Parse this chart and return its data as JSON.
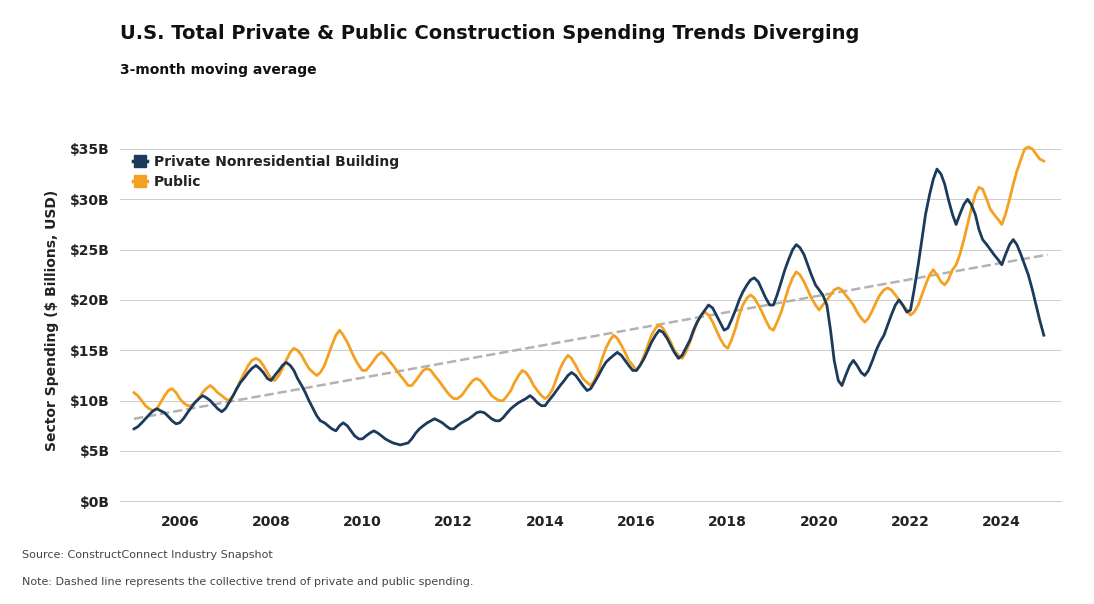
{
  "title": "U.S. Total Private & Public Construction Spending Trends Diverging",
  "subtitle": "3-month moving average",
  "ylabel": "Sector Spending ($ Billions, USD)",
  "source_text": "Source: ConstructConnect Industry Snapshot",
  "note_text": "Note: Dashed line represents the collective trend of private and public spending.",
  "ytick_labels": [
    "$0B",
    "$5B",
    "$10B",
    "$15B",
    "$20B",
    "$25B",
    "$30B",
    "$35B"
  ],
  "ytick_values": [
    0,
    5,
    10,
    15,
    20,
    25,
    30,
    35
  ],
  "xtick_years": [
    2006,
    2008,
    2010,
    2012,
    2014,
    2016,
    2018,
    2020,
    2022,
    2024
  ],
  "private_color": "#1b3a5c",
  "public_color": "#f5a020",
  "trend_color": "#aaaaaa",
  "background_color": "#ffffff",
  "private_label": "Private Nonresidential Building",
  "public_label": "Public",
  "xlim_start": 2004.7,
  "xlim_end": 2025.3,
  "ylim_min": 0,
  "ylim_max": 36,
  "trend_x": [
    2005.0,
    2025.0
  ],
  "trend_y": [
    8.2,
    24.5
  ],
  "private_data": [
    [
      2005.0,
      7.2
    ],
    [
      2005.08,
      7.4
    ],
    [
      2005.17,
      7.8
    ],
    [
      2005.25,
      8.2
    ],
    [
      2005.33,
      8.6
    ],
    [
      2005.42,
      9.0
    ],
    [
      2005.5,
      9.2
    ],
    [
      2005.58,
      9.0
    ],
    [
      2005.67,
      8.8
    ],
    [
      2005.75,
      8.4
    ],
    [
      2005.83,
      8.0
    ],
    [
      2005.92,
      7.7
    ],
    [
      2006.0,
      7.8
    ],
    [
      2006.08,
      8.2
    ],
    [
      2006.17,
      8.8
    ],
    [
      2006.25,
      9.3
    ],
    [
      2006.33,
      9.8
    ],
    [
      2006.42,
      10.2
    ],
    [
      2006.5,
      10.5
    ],
    [
      2006.58,
      10.3
    ],
    [
      2006.67,
      10.0
    ],
    [
      2006.75,
      9.6
    ],
    [
      2006.83,
      9.2
    ],
    [
      2006.92,
      8.9
    ],
    [
      2007.0,
      9.2
    ],
    [
      2007.08,
      9.8
    ],
    [
      2007.17,
      10.5
    ],
    [
      2007.25,
      11.2
    ],
    [
      2007.33,
      11.8
    ],
    [
      2007.42,
      12.3
    ],
    [
      2007.5,
      12.8
    ],
    [
      2007.58,
      13.2
    ],
    [
      2007.67,
      13.5
    ],
    [
      2007.75,
      13.2
    ],
    [
      2007.83,
      12.8
    ],
    [
      2007.92,
      12.2
    ],
    [
      2008.0,
      12.0
    ],
    [
      2008.08,
      12.5
    ],
    [
      2008.17,
      13.0
    ],
    [
      2008.25,
      13.5
    ],
    [
      2008.33,
      13.8
    ],
    [
      2008.42,
      13.5
    ],
    [
      2008.5,
      13.0
    ],
    [
      2008.58,
      12.2
    ],
    [
      2008.67,
      11.5
    ],
    [
      2008.75,
      10.8
    ],
    [
      2008.83,
      10.0
    ],
    [
      2008.92,
      9.2
    ],
    [
      2009.0,
      8.5
    ],
    [
      2009.08,
      8.0
    ],
    [
      2009.17,
      7.8
    ],
    [
      2009.25,
      7.5
    ],
    [
      2009.33,
      7.2
    ],
    [
      2009.42,
      7.0
    ],
    [
      2009.5,
      7.5
    ],
    [
      2009.58,
      7.8
    ],
    [
      2009.67,
      7.5
    ],
    [
      2009.75,
      7.0
    ],
    [
      2009.83,
      6.5
    ],
    [
      2009.92,
      6.2
    ],
    [
      2010.0,
      6.2
    ],
    [
      2010.08,
      6.5
    ],
    [
      2010.17,
      6.8
    ],
    [
      2010.25,
      7.0
    ],
    [
      2010.33,
      6.8
    ],
    [
      2010.42,
      6.5
    ],
    [
      2010.5,
      6.2
    ],
    [
      2010.58,
      6.0
    ],
    [
      2010.67,
      5.8
    ],
    [
      2010.75,
      5.7
    ],
    [
      2010.83,
      5.6
    ],
    [
      2010.92,
      5.7
    ],
    [
      2011.0,
      5.8
    ],
    [
      2011.08,
      6.2
    ],
    [
      2011.17,
      6.8
    ],
    [
      2011.25,
      7.2
    ],
    [
      2011.33,
      7.5
    ],
    [
      2011.42,
      7.8
    ],
    [
      2011.5,
      8.0
    ],
    [
      2011.58,
      8.2
    ],
    [
      2011.67,
      8.0
    ],
    [
      2011.75,
      7.8
    ],
    [
      2011.83,
      7.5
    ],
    [
      2011.92,
      7.2
    ],
    [
      2012.0,
      7.2
    ],
    [
      2012.08,
      7.5
    ],
    [
      2012.17,
      7.8
    ],
    [
      2012.25,
      8.0
    ],
    [
      2012.33,
      8.2
    ],
    [
      2012.42,
      8.5
    ],
    [
      2012.5,
      8.8
    ],
    [
      2012.58,
      8.9
    ],
    [
      2012.67,
      8.8
    ],
    [
      2012.75,
      8.5
    ],
    [
      2012.83,
      8.2
    ],
    [
      2012.92,
      8.0
    ],
    [
      2013.0,
      8.0
    ],
    [
      2013.08,
      8.3
    ],
    [
      2013.17,
      8.8
    ],
    [
      2013.25,
      9.2
    ],
    [
      2013.33,
      9.5
    ],
    [
      2013.42,
      9.8
    ],
    [
      2013.5,
      10.0
    ],
    [
      2013.58,
      10.2
    ],
    [
      2013.67,
      10.5
    ],
    [
      2013.75,
      10.2
    ],
    [
      2013.83,
      9.8
    ],
    [
      2013.92,
      9.5
    ],
    [
      2014.0,
      9.5
    ],
    [
      2014.08,
      10.0
    ],
    [
      2014.17,
      10.5
    ],
    [
      2014.25,
      11.0
    ],
    [
      2014.33,
      11.5
    ],
    [
      2014.42,
      12.0
    ],
    [
      2014.5,
      12.5
    ],
    [
      2014.58,
      12.8
    ],
    [
      2014.67,
      12.5
    ],
    [
      2014.75,
      12.0
    ],
    [
      2014.83,
      11.5
    ],
    [
      2014.92,
      11.0
    ],
    [
      2015.0,
      11.2
    ],
    [
      2015.08,
      11.8
    ],
    [
      2015.17,
      12.5
    ],
    [
      2015.25,
      13.2
    ],
    [
      2015.33,
      13.8
    ],
    [
      2015.42,
      14.2
    ],
    [
      2015.5,
      14.5
    ],
    [
      2015.58,
      14.8
    ],
    [
      2015.67,
      14.5
    ],
    [
      2015.75,
      14.0
    ],
    [
      2015.83,
      13.5
    ],
    [
      2015.92,
      13.0
    ],
    [
      2016.0,
      13.0
    ],
    [
      2016.08,
      13.5
    ],
    [
      2016.17,
      14.2
    ],
    [
      2016.25,
      15.0
    ],
    [
      2016.33,
      15.8
    ],
    [
      2016.42,
      16.5
    ],
    [
      2016.5,
      17.0
    ],
    [
      2016.58,
      16.8
    ],
    [
      2016.67,
      16.2
    ],
    [
      2016.75,
      15.5
    ],
    [
      2016.83,
      14.8
    ],
    [
      2016.92,
      14.2
    ],
    [
      2017.0,
      14.5
    ],
    [
      2017.08,
      15.2
    ],
    [
      2017.17,
      16.0
    ],
    [
      2017.25,
      17.0
    ],
    [
      2017.33,
      17.8
    ],
    [
      2017.42,
      18.5
    ],
    [
      2017.5,
      19.0
    ],
    [
      2017.58,
      19.5
    ],
    [
      2017.67,
      19.2
    ],
    [
      2017.75,
      18.5
    ],
    [
      2017.83,
      17.8
    ],
    [
      2017.92,
      17.0
    ],
    [
      2018.0,
      17.2
    ],
    [
      2018.08,
      18.0
    ],
    [
      2018.17,
      19.0
    ],
    [
      2018.25,
      20.0
    ],
    [
      2018.33,
      20.8
    ],
    [
      2018.42,
      21.5
    ],
    [
      2018.5,
      22.0
    ],
    [
      2018.58,
      22.2
    ],
    [
      2018.67,
      21.8
    ],
    [
      2018.75,
      21.0
    ],
    [
      2018.83,
      20.2
    ],
    [
      2018.92,
      19.5
    ],
    [
      2019.0,
      19.5
    ],
    [
      2019.08,
      20.5
    ],
    [
      2019.17,
      21.8
    ],
    [
      2019.25,
      23.0
    ],
    [
      2019.33,
      24.0
    ],
    [
      2019.42,
      25.0
    ],
    [
      2019.5,
      25.5
    ],
    [
      2019.58,
      25.2
    ],
    [
      2019.67,
      24.5
    ],
    [
      2019.75,
      23.5
    ],
    [
      2019.83,
      22.5
    ],
    [
      2019.92,
      21.5
    ],
    [
      2020.0,
      21.0
    ],
    [
      2020.08,
      20.5
    ],
    [
      2020.17,
      19.5
    ],
    [
      2020.25,
      17.0
    ],
    [
      2020.33,
      14.0
    ],
    [
      2020.42,
      12.0
    ],
    [
      2020.5,
      11.5
    ],
    [
      2020.58,
      12.5
    ],
    [
      2020.67,
      13.5
    ],
    [
      2020.75,
      14.0
    ],
    [
      2020.83,
      13.5
    ],
    [
      2020.92,
      12.8
    ],
    [
      2021.0,
      12.5
    ],
    [
      2021.08,
      13.0
    ],
    [
      2021.17,
      14.0
    ],
    [
      2021.25,
      15.0
    ],
    [
      2021.33,
      15.8
    ],
    [
      2021.42,
      16.5
    ],
    [
      2021.5,
      17.5
    ],
    [
      2021.58,
      18.5
    ],
    [
      2021.67,
      19.5
    ],
    [
      2021.75,
      20.0
    ],
    [
      2021.83,
      19.5
    ],
    [
      2021.92,
      18.8
    ],
    [
      2022.0,
      19.0
    ],
    [
      2022.08,
      21.0
    ],
    [
      2022.17,
      23.5
    ],
    [
      2022.25,
      26.0
    ],
    [
      2022.33,
      28.5
    ],
    [
      2022.42,
      30.5
    ],
    [
      2022.5,
      32.0
    ],
    [
      2022.58,
      33.0
    ],
    [
      2022.67,
      32.5
    ],
    [
      2022.75,
      31.5
    ],
    [
      2022.83,
      30.0
    ],
    [
      2022.92,
      28.5
    ],
    [
      2023.0,
      27.5
    ],
    [
      2023.08,
      28.5
    ],
    [
      2023.17,
      29.5
    ],
    [
      2023.25,
      30.0
    ],
    [
      2023.33,
      29.5
    ],
    [
      2023.42,
      28.5
    ],
    [
      2023.5,
      27.0
    ],
    [
      2023.58,
      26.0
    ],
    [
      2023.67,
      25.5
    ],
    [
      2023.75,
      25.0
    ],
    [
      2023.83,
      24.5
    ],
    [
      2023.92,
      24.0
    ],
    [
      2024.0,
      23.5
    ],
    [
      2024.08,
      24.5
    ],
    [
      2024.17,
      25.5
    ],
    [
      2024.25,
      26.0
    ],
    [
      2024.33,
      25.5
    ],
    [
      2024.42,
      24.5
    ],
    [
      2024.5,
      23.5
    ],
    [
      2024.58,
      22.5
    ],
    [
      2024.67,
      21.0
    ],
    [
      2024.75,
      19.5
    ],
    [
      2024.83,
      18.0
    ],
    [
      2024.92,
      16.5
    ]
  ],
  "public_data": [
    [
      2005.0,
      10.8
    ],
    [
      2005.08,
      10.5
    ],
    [
      2005.17,
      10.0
    ],
    [
      2005.25,
      9.5
    ],
    [
      2005.33,
      9.2
    ],
    [
      2005.42,
      9.0
    ],
    [
      2005.5,
      9.2
    ],
    [
      2005.58,
      9.8
    ],
    [
      2005.67,
      10.5
    ],
    [
      2005.75,
      11.0
    ],
    [
      2005.83,
      11.2
    ],
    [
      2005.92,
      10.8
    ],
    [
      2006.0,
      10.2
    ],
    [
      2006.08,
      9.8
    ],
    [
      2006.17,
      9.5
    ],
    [
      2006.25,
      9.5
    ],
    [
      2006.33,
      9.8
    ],
    [
      2006.42,
      10.2
    ],
    [
      2006.5,
      10.8
    ],
    [
      2006.58,
      11.2
    ],
    [
      2006.67,
      11.5
    ],
    [
      2006.75,
      11.2
    ],
    [
      2006.83,
      10.8
    ],
    [
      2006.92,
      10.5
    ],
    [
      2007.0,
      10.2
    ],
    [
      2007.08,
      10.0
    ],
    [
      2007.17,
      10.5
    ],
    [
      2007.25,
      11.2
    ],
    [
      2007.33,
      12.0
    ],
    [
      2007.42,
      12.8
    ],
    [
      2007.5,
      13.5
    ],
    [
      2007.58,
      14.0
    ],
    [
      2007.67,
      14.2
    ],
    [
      2007.75,
      14.0
    ],
    [
      2007.83,
      13.5
    ],
    [
      2007.92,
      12.8
    ],
    [
      2008.0,
      12.2
    ],
    [
      2008.08,
      12.0
    ],
    [
      2008.17,
      12.5
    ],
    [
      2008.25,
      13.2
    ],
    [
      2008.33,
      14.0
    ],
    [
      2008.42,
      14.8
    ],
    [
      2008.5,
      15.2
    ],
    [
      2008.58,
      15.0
    ],
    [
      2008.67,
      14.5
    ],
    [
      2008.75,
      13.8
    ],
    [
      2008.83,
      13.2
    ],
    [
      2008.92,
      12.8
    ],
    [
      2009.0,
      12.5
    ],
    [
      2009.08,
      12.8
    ],
    [
      2009.17,
      13.5
    ],
    [
      2009.25,
      14.5
    ],
    [
      2009.33,
      15.5
    ],
    [
      2009.42,
      16.5
    ],
    [
      2009.5,
      17.0
    ],
    [
      2009.58,
      16.5
    ],
    [
      2009.67,
      15.8
    ],
    [
      2009.75,
      15.0
    ],
    [
      2009.83,
      14.2
    ],
    [
      2009.92,
      13.5
    ],
    [
      2010.0,
      13.0
    ],
    [
      2010.08,
      13.0
    ],
    [
      2010.17,
      13.5
    ],
    [
      2010.25,
      14.0
    ],
    [
      2010.33,
      14.5
    ],
    [
      2010.42,
      14.8
    ],
    [
      2010.5,
      14.5
    ],
    [
      2010.58,
      14.0
    ],
    [
      2010.67,
      13.5
    ],
    [
      2010.75,
      13.0
    ],
    [
      2010.83,
      12.5
    ],
    [
      2010.92,
      12.0
    ],
    [
      2011.0,
      11.5
    ],
    [
      2011.08,
      11.5
    ],
    [
      2011.17,
      12.0
    ],
    [
      2011.25,
      12.5
    ],
    [
      2011.33,
      13.0
    ],
    [
      2011.42,
      13.2
    ],
    [
      2011.5,
      13.0
    ],
    [
      2011.58,
      12.5
    ],
    [
      2011.67,
      12.0
    ],
    [
      2011.75,
      11.5
    ],
    [
      2011.83,
      11.0
    ],
    [
      2011.92,
      10.5
    ],
    [
      2012.0,
      10.2
    ],
    [
      2012.08,
      10.2
    ],
    [
      2012.17,
      10.5
    ],
    [
      2012.25,
      11.0
    ],
    [
      2012.33,
      11.5
    ],
    [
      2012.42,
      12.0
    ],
    [
      2012.5,
      12.2
    ],
    [
      2012.58,
      12.0
    ],
    [
      2012.67,
      11.5
    ],
    [
      2012.75,
      11.0
    ],
    [
      2012.83,
      10.5
    ],
    [
      2012.92,
      10.2
    ],
    [
      2013.0,
      10.0
    ],
    [
      2013.08,
      10.0
    ],
    [
      2013.17,
      10.5
    ],
    [
      2013.25,
      11.0
    ],
    [
      2013.33,
      11.8
    ],
    [
      2013.42,
      12.5
    ],
    [
      2013.5,
      13.0
    ],
    [
      2013.58,
      12.8
    ],
    [
      2013.67,
      12.2
    ],
    [
      2013.75,
      11.5
    ],
    [
      2013.83,
      11.0
    ],
    [
      2013.92,
      10.5
    ],
    [
      2014.0,
      10.2
    ],
    [
      2014.08,
      10.5
    ],
    [
      2014.17,
      11.2
    ],
    [
      2014.25,
      12.2
    ],
    [
      2014.33,
      13.2
    ],
    [
      2014.42,
      14.0
    ],
    [
      2014.5,
      14.5
    ],
    [
      2014.58,
      14.2
    ],
    [
      2014.67,
      13.5
    ],
    [
      2014.75,
      12.8
    ],
    [
      2014.83,
      12.2
    ],
    [
      2014.92,
      11.8
    ],
    [
      2015.0,
      11.5
    ],
    [
      2015.08,
      12.0
    ],
    [
      2015.17,
      13.0
    ],
    [
      2015.25,
      14.2
    ],
    [
      2015.33,
      15.2
    ],
    [
      2015.42,
      16.0
    ],
    [
      2015.5,
      16.5
    ],
    [
      2015.58,
      16.2
    ],
    [
      2015.67,
      15.5
    ],
    [
      2015.75,
      14.8
    ],
    [
      2015.83,
      14.0
    ],
    [
      2015.92,
      13.5
    ],
    [
      2016.0,
      13.0
    ],
    [
      2016.08,
      13.5
    ],
    [
      2016.17,
      14.5
    ],
    [
      2016.25,
      15.5
    ],
    [
      2016.33,
      16.5
    ],
    [
      2016.42,
      17.2
    ],
    [
      2016.5,
      17.5
    ],
    [
      2016.58,
      17.2
    ],
    [
      2016.67,
      16.5
    ],
    [
      2016.75,
      15.8
    ],
    [
      2016.83,
      15.0
    ],
    [
      2016.92,
      14.5
    ],
    [
      2017.0,
      14.2
    ],
    [
      2017.08,
      14.8
    ],
    [
      2017.17,
      15.8
    ],
    [
      2017.25,
      16.8
    ],
    [
      2017.33,
      17.8
    ],
    [
      2017.42,
      18.5
    ],
    [
      2017.5,
      18.8
    ],
    [
      2017.58,
      18.5
    ],
    [
      2017.67,
      17.8
    ],
    [
      2017.75,
      17.0
    ],
    [
      2017.83,
      16.2
    ],
    [
      2017.92,
      15.5
    ],
    [
      2018.0,
      15.2
    ],
    [
      2018.08,
      16.0
    ],
    [
      2018.17,
      17.2
    ],
    [
      2018.25,
      18.5
    ],
    [
      2018.33,
      19.5
    ],
    [
      2018.42,
      20.2
    ],
    [
      2018.5,
      20.5
    ],
    [
      2018.58,
      20.2
    ],
    [
      2018.67,
      19.5
    ],
    [
      2018.75,
      18.8
    ],
    [
      2018.83,
      18.0
    ],
    [
      2018.92,
      17.2
    ],
    [
      2019.0,
      17.0
    ],
    [
      2019.08,
      17.8
    ],
    [
      2019.17,
      18.8
    ],
    [
      2019.25,
      20.0
    ],
    [
      2019.33,
      21.2
    ],
    [
      2019.42,
      22.2
    ],
    [
      2019.5,
      22.8
    ],
    [
      2019.58,
      22.5
    ],
    [
      2019.67,
      21.8
    ],
    [
      2019.75,
      21.0
    ],
    [
      2019.83,
      20.2
    ],
    [
      2019.92,
      19.5
    ],
    [
      2020.0,
      19.0
    ],
    [
      2020.08,
      19.5
    ],
    [
      2020.17,
      20.0
    ],
    [
      2020.25,
      20.5
    ],
    [
      2020.33,
      21.0
    ],
    [
      2020.42,
      21.2
    ],
    [
      2020.5,
      21.0
    ],
    [
      2020.58,
      20.5
    ],
    [
      2020.67,
      20.0
    ],
    [
      2020.75,
      19.5
    ],
    [
      2020.83,
      18.8
    ],
    [
      2020.92,
      18.2
    ],
    [
      2021.0,
      17.8
    ],
    [
      2021.08,
      18.2
    ],
    [
      2021.17,
      19.0
    ],
    [
      2021.25,
      19.8
    ],
    [
      2021.33,
      20.5
    ],
    [
      2021.42,
      21.0
    ],
    [
      2021.5,
      21.2
    ],
    [
      2021.58,
      21.0
    ],
    [
      2021.67,
      20.5
    ],
    [
      2021.75,
      20.0
    ],
    [
      2021.83,
      19.5
    ],
    [
      2021.92,
      19.0
    ],
    [
      2022.0,
      18.5
    ],
    [
      2022.08,
      18.8
    ],
    [
      2022.17,
      19.5
    ],
    [
      2022.25,
      20.5
    ],
    [
      2022.33,
      21.5
    ],
    [
      2022.42,
      22.5
    ],
    [
      2022.5,
      23.0
    ],
    [
      2022.58,
      22.5
    ],
    [
      2022.67,
      21.8
    ],
    [
      2022.75,
      21.5
    ],
    [
      2022.83,
      22.0
    ],
    [
      2022.92,
      23.0
    ],
    [
      2023.0,
      23.5
    ],
    [
      2023.08,
      24.5
    ],
    [
      2023.17,
      26.0
    ],
    [
      2023.25,
      27.5
    ],
    [
      2023.33,
      29.0
    ],
    [
      2023.42,
      30.5
    ],
    [
      2023.5,
      31.2
    ],
    [
      2023.58,
      31.0
    ],
    [
      2023.67,
      30.0
    ],
    [
      2023.75,
      29.0
    ],
    [
      2023.83,
      28.5
    ],
    [
      2023.92,
      28.0
    ],
    [
      2024.0,
      27.5
    ],
    [
      2024.08,
      28.5
    ],
    [
      2024.17,
      30.0
    ],
    [
      2024.25,
      31.5
    ],
    [
      2024.33,
      32.8
    ],
    [
      2024.42,
      34.0
    ],
    [
      2024.5,
      35.0
    ],
    [
      2024.58,
      35.2
    ],
    [
      2024.67,
      35.0
    ],
    [
      2024.75,
      34.5
    ],
    [
      2024.83,
      34.0
    ],
    [
      2024.92,
      33.8
    ]
  ]
}
